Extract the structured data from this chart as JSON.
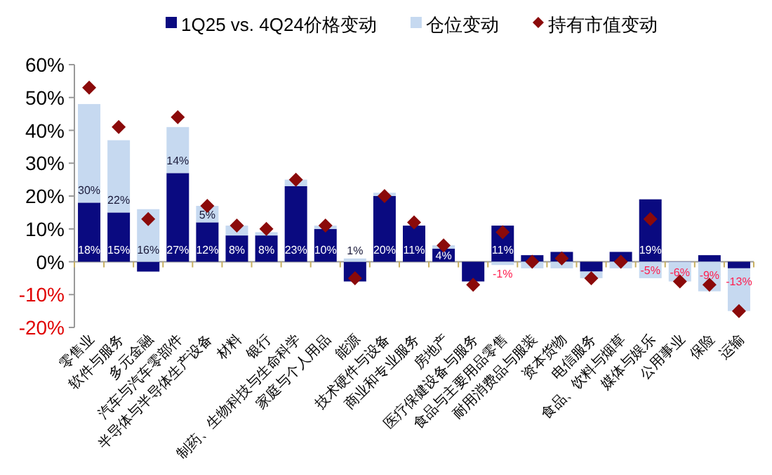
{
  "chart_data": {
    "type": "bar",
    "stacked": true,
    "legend": "top",
    "categories": [
      "零售业",
      "软件与服务",
      "多元金融",
      "汽车与汽车零部件",
      "半导体与半导体生产设备",
      "材料",
      "银行",
      "制药、生物科技与生命科学",
      "家庭与个人用品",
      "能源",
      "技术硬件与设备",
      "商业和专业服务",
      "房地产",
      "医疗保健设备与服务",
      "食品与主要用品零售",
      "耐用消费品与服装",
      "资本货物",
      "电信服务",
      "食品、饮料与烟草",
      "媒体与娱乐",
      "公用事业",
      "保险",
      "运输"
    ],
    "series": [
      {
        "name": "1Q25 vs. 4Q24价格变动",
        "color": "#0a0a80",
        "values": [
          18,
          15,
          -3,
          27,
          12,
          8,
          8,
          23,
          10,
          -6,
          20,
          11,
          4,
          -6,
          11,
          2,
          3,
          -3,
          3,
          19,
          0,
          2,
          -2
        ],
        "value_labels": [
          "18%",
          "15%",
          null,
          "27%",
          "12%",
          "8%",
          "8%",
          "23%",
          "10%",
          null,
          "20%",
          "11%",
          "4%",
          null,
          "11%",
          null,
          null,
          null,
          null,
          "19%",
          null,
          null,
          null
        ]
      },
      {
        "name": "仓位变动",
        "color": "#c6d9f0",
        "values": [
          30,
          22,
          16,
          14,
          5,
          3,
          1,
          2,
          1,
          1,
          1,
          null,
          1,
          null,
          -1,
          -2,
          -2,
          -2,
          -2,
          -5,
          -6,
          -9,
          -13
        ],
        "value_labels": [
          "30%",
          "22%",
          "16%",
          "14%",
          "5%",
          null,
          null,
          null,
          null,
          "1%",
          null,
          null,
          null,
          null,
          "-1%",
          null,
          null,
          null,
          null,
          "-5%",
          "-6%",
          "-9%",
          "-13%"
        ]
      },
      {
        "name": "持有市值变动",
        "type": "scatter",
        "marker": "diamond",
        "color": "#8b0a0a",
        "values": [
          53,
          41,
          13,
          44,
          17,
          11,
          10,
          25,
          11,
          -5,
          20,
          12,
          5,
          -7,
          9,
          0,
          1,
          -5,
          0,
          13,
          -6,
          -7,
          -15
        ]
      }
    ],
    "ylim": [
      -20,
      60
    ],
    "yticks": [
      {
        "value": -20,
        "label": "-20%"
      },
      {
        "value": -10,
        "label": "-10%"
      },
      {
        "value": 0,
        "label": "0%"
      },
      {
        "value": 10,
        "label": "10%"
      },
      {
        "value": 20,
        "label": "20%"
      },
      {
        "value": 30,
        "label": "30%"
      },
      {
        "value": 40,
        "label": "40%"
      },
      {
        "value": 50,
        "label": "50%"
      },
      {
        "value": 60,
        "label": "60%"
      }
    ]
  }
}
